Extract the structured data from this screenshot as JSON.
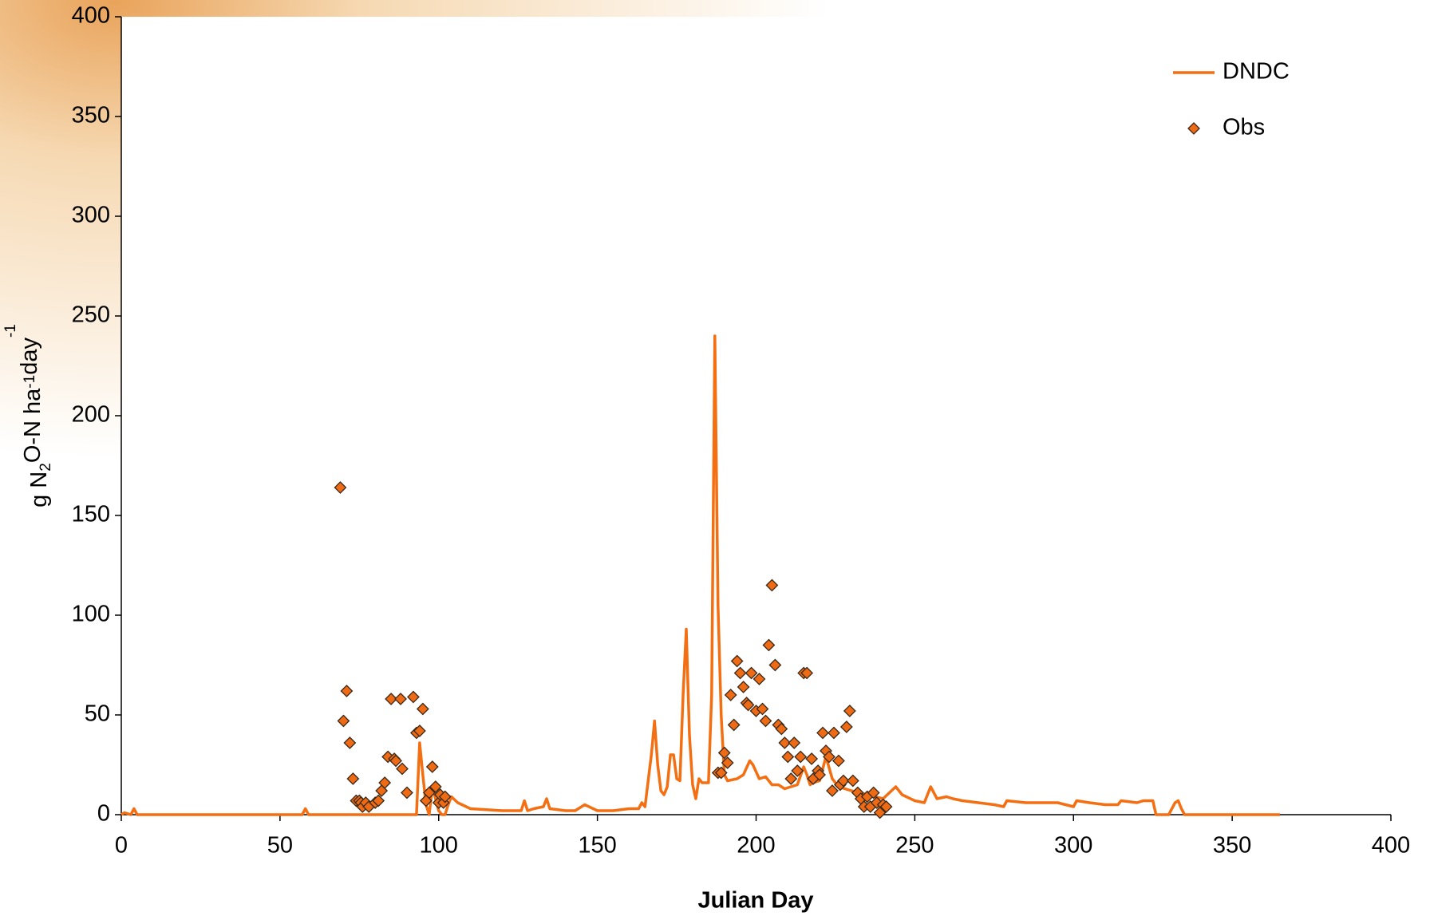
{
  "chart_data": {
    "type": "line",
    "x_label": "Julian Day",
    "y_label": [
      "g N",
      "2",
      "O-N ha",
      "-1",
      "day",
      "-1"
    ],
    "xlim": [
      0,
      400
    ],
    "xticks": [
      0,
      50,
      100,
      150,
      200,
      250,
      300,
      350,
      400
    ],
    "ylim": [
      0,
      400
    ],
    "yticks": [
      0,
      50,
      100,
      150,
      200,
      250,
      300,
      350,
      400
    ],
    "legend": "top-right",
    "series": [
      {
        "name": "DNDC",
        "type": "line",
        "color": "#f36f12",
        "x": [
          0,
          1,
          3,
          4,
          5,
          57,
          58,
          59,
          93,
          94,
          95,
          96,
          97,
          98,
          99,
          100,
          101,
          102,
          103,
          104,
          106,
          110,
          120,
          126,
          127,
          128,
          130,
          133,
          134,
          135,
          140,
          143,
          146,
          150,
          155,
          160,
          163,
          164,
          165,
          167,
          168,
          169,
          170,
          171,
          172,
          173,
          174,
          175,
          176,
          177,
          178,
          179,
          180,
          181,
          182,
          183,
          185,
          186,
          187,
          188,
          189,
          190,
          191,
          194,
          196,
          198,
          199,
          201,
          203,
          205,
          207,
          209,
          211,
          213,
          215,
          216,
          217,
          218,
          220,
          222,
          224,
          226,
          230,
          235,
          240,
          244,
          246,
          250,
          253,
          255,
          257,
          260,
          262,
          265,
          270,
          275,
          278,
          279,
          285,
          290,
          295,
          300,
          301,
          305,
          310,
          314,
          315,
          320,
          322,
          325,
          326,
          330,
          332,
          333,
          334,
          335,
          365
        ],
        "values": [
          0,
          1,
          0,
          3,
          0,
          0,
          3,
          0,
          0,
          36,
          20,
          5,
          0,
          14,
          8,
          2,
          0,
          0,
          5,
          9,
          6,
          3,
          2,
          2,
          7,
          2,
          3,
          4,
          8,
          3,
          2,
          2,
          5,
          2,
          2,
          3,
          3,
          6,
          4,
          30,
          47,
          25,
          12,
          10,
          14,
          30,
          30,
          18,
          17,
          60,
          93,
          40,
          15,
          8,
          18,
          16,
          16,
          60,
          240,
          105,
          50,
          20,
          17,
          18,
          20,
          27,
          25,
          18,
          19,
          15,
          15,
          13,
          14,
          15,
          24,
          20,
          15,
          16,
          17,
          29,
          18,
          14,
          12,
          10,
          8,
          14,
          10,
          7,
          6,
          14,
          8,
          9,
          8,
          7,
          6,
          5,
          4,
          7,
          6,
          6,
          6,
          4,
          7,
          6,
          5,
          5,
          7,
          6,
          7,
          7,
          0,
          0,
          6,
          7,
          3,
          0,
          0
        ]
      },
      {
        "name": "Obs",
        "type": "scatter",
        "color": "#ee6a14",
        "x": [
          69,
          71,
          70,
          72,
          73,
          74,
          75,
          75.5,
          76,
          77,
          78,
          80,
          81,
          82,
          83,
          84,
          85,
          86,
          86.5,
          88,
          88.5,
          90,
          92,
          93,
          94,
          95,
          96,
          97,
          98,
          99,
          100,
          100.5,
          101.5,
          102,
          188,
          189,
          190,
          191,
          192,
          193,
          194,
          195,
          196,
          197,
          197.5,
          198.5,
          200,
          201,
          202,
          203,
          204,
          205,
          206,
          207,
          208,
          209,
          210,
          211,
          212,
          213,
          214,
          215,
          216,
          217.5,
          218,
          219.5,
          220,
          221,
          222,
          223,
          224,
          224.5,
          226,
          226.5,
          227.5,
          228.5,
          229.5,
          230.5,
          232,
          233,
          234,
          235,
          236,
          237,
          238,
          239,
          240,
          241
        ],
        "values": [
          164,
          62,
          47,
          36,
          18,
          7,
          7,
          6,
          4,
          6,
          4,
          6,
          7,
          12,
          16,
          29,
          58,
          28,
          27,
          58,
          23,
          11,
          59,
          41,
          42,
          53,
          7,
          11,
          24,
          14,
          6,
          10,
          6,
          9,
          21,
          21,
          31,
          26,
          60,
          45,
          77,
          71,
          64,
          56,
          55,
          71,
          52,
          68,
          53,
          47,
          85,
          115,
          75,
          45,
          43,
          36,
          29,
          18,
          36,
          22,
          29,
          71,
          71,
          28,
          18,
          22,
          20,
          41,
          32,
          29,
          12,
          41,
          27,
          15,
          17,
          44,
          52,
          17,
          11,
          8,
          4,
          9,
          4,
          11,
          6,
          1,
          5,
          4
        ]
      }
    ]
  }
}
